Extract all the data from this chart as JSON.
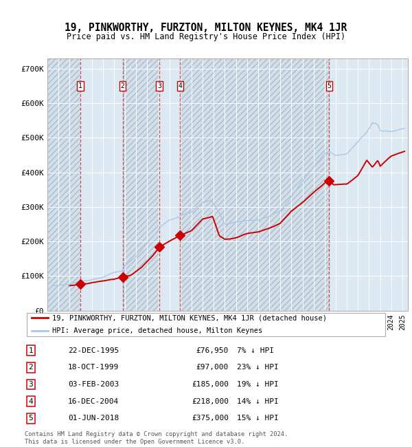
{
  "title": "19, PINKWORTHY, FURZTON, MILTON KEYNES, MK4 1JR",
  "subtitle": "Price paid vs. HM Land Registry's House Price Index (HPI)",
  "sale_dates_num": [
    1995.97,
    1999.79,
    2003.09,
    2004.96,
    2018.41
  ],
  "sale_prices": [
    76950,
    97000,
    185000,
    218000,
    375000
  ],
  "sale_labels": [
    "1",
    "2",
    "3",
    "4",
    "5"
  ],
  "hpi_color": "#a8c8e8",
  "price_color": "#cc0000",
  "table_rows": [
    [
      "1",
      "22-DEC-1995",
      "£76,950",
      "7% ↓ HPI"
    ],
    [
      "2",
      "18-OCT-1999",
      "£97,000",
      "23% ↓ HPI"
    ],
    [
      "3",
      "03-FEB-2003",
      "£185,000",
      "19% ↓ HPI"
    ],
    [
      "4",
      "16-DEC-2004",
      "£218,000",
      "14% ↓ HPI"
    ],
    [
      "5",
      "01-JUN-2018",
      "£375,000",
      "15% ↓ HPI"
    ]
  ],
  "legend_entries": [
    "19, PINKWORTHY, FURZTON, MILTON KEYNES, MK4 1JR (detached house)",
    "HPI: Average price, detached house, Milton Keynes"
  ],
  "footer": "Contains HM Land Registry data © Crown copyright and database right 2024.\nThis data is licensed under the Open Government Licence v3.0.",
  "ylim": [
    0,
    730000
  ],
  "yticks": [
    0,
    100000,
    200000,
    300000,
    400000,
    500000,
    600000,
    700000
  ],
  "ytick_labels": [
    "£0",
    "£100K",
    "£200K",
    "£300K",
    "£400K",
    "£500K",
    "£600K",
    "£700K"
  ],
  "xmin": 1993.0,
  "xmax": 2025.5
}
